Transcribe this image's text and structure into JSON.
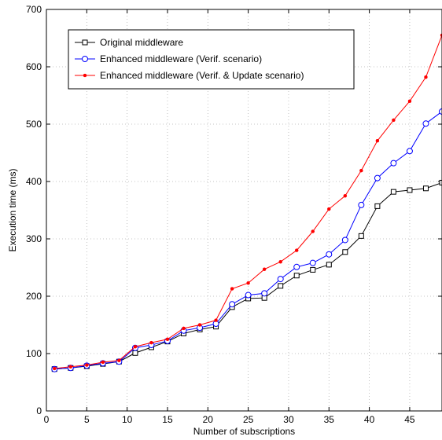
{
  "chart_data": {
    "type": "line",
    "xlabel": "Number of subscriptions",
    "ylabel": "Execution time (ms)",
    "xlim": [
      0,
      49
    ],
    "ylim": [
      0,
      700
    ],
    "xticks": [
      0,
      5,
      10,
      15,
      20,
      25,
      30,
      35,
      40,
      45
    ],
    "yticks": [
      0,
      100,
      200,
      300,
      400,
      500,
      600,
      700
    ],
    "grid": true,
    "legend_position": "top-left",
    "x": [
      1,
      3,
      5,
      7,
      9,
      11,
      13,
      15,
      17,
      19,
      21,
      23,
      25,
      27,
      29,
      31,
      33,
      35,
      37,
      39,
      41,
      43,
      45,
      47,
      49
    ],
    "series": [
      {
        "name": "Original middleware",
        "color": "#000000",
        "marker": "square",
        "values": [
          73,
          75,
          78,
          82,
          86,
          101,
          111,
          121,
          135,
          142,
          147,
          181,
          196,
          197,
          218,
          236,
          246,
          255,
          277,
          305,
          357,
          382,
          385,
          388,
          398
        ]
      },
      {
        "name": "Enhanced middleware (Verif. scenario)",
        "color": "#0000ff",
        "marker": "circle",
        "values": [
          73,
          75,
          79,
          83,
          86,
          110,
          115,
          122,
          140,
          145,
          152,
          186,
          202,
          205,
          230,
          251,
          258,
          273,
          298,
          359,
          406,
          432,
          453,
          501,
          522
        ]
      },
      {
        "name": "Enhanced middleware (Verif. & Update scenario)",
        "color": "#ff0000",
        "marker": "dot",
        "values": [
          74,
          77,
          80,
          85,
          88,
          112,
          119,
          125,
          144,
          150,
          158,
          213,
          223,
          247,
          260,
          280,
          313,
          352,
          375,
          419,
          471,
          507,
          540,
          582,
          655
        ]
      }
    ]
  }
}
